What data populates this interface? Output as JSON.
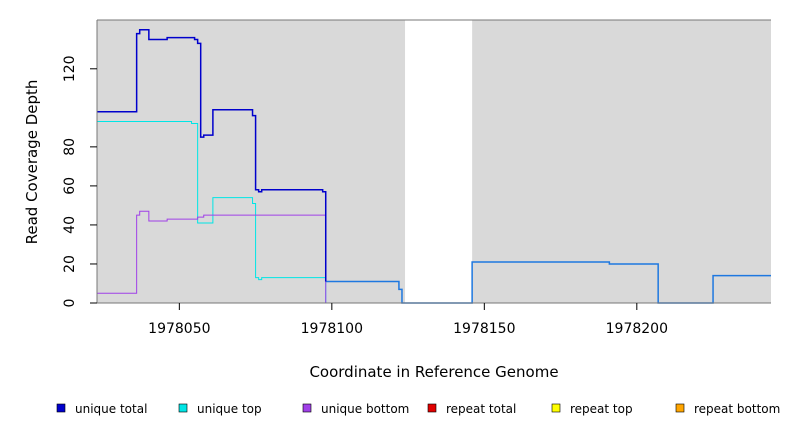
{
  "chart_data": {
    "type": "line",
    "title": "",
    "xlabel": "Coordinate in Reference Genome",
    "ylabel": "Read Coverage Depth",
    "xlim": [
      1978023,
      1978244
    ],
    "ylim": [
      0,
      145
    ],
    "xticks": [
      1978050,
      1978100,
      1978150,
      1978200
    ],
    "yticks": [
      0,
      20,
      40,
      60,
      80,
      120
    ],
    "background_color": "#d9d9d9",
    "gap_regions": [
      [
        1978124,
        1978146
      ]
    ],
    "legend_position": "bottom",
    "series": [
      {
        "name": "unique total",
        "color": "#0000cc",
        "points": [
          [
            1978023,
            98
          ],
          [
            1978036,
            98
          ],
          [
            1978036,
            138
          ],
          [
            1978037,
            138
          ],
          [
            1978037,
            140
          ],
          [
            1978040,
            140
          ],
          [
            1978040,
            135
          ],
          [
            1978046,
            135
          ],
          [
            1978046,
            136
          ],
          [
            1978055,
            136
          ],
          [
            1978055,
            135
          ],
          [
            1978056,
            135
          ],
          [
            1978056,
            133
          ],
          [
            1978057,
            133
          ],
          [
            1978057,
            85
          ],
          [
            1978058,
            85
          ],
          [
            1978058,
            86
          ],
          [
            1978061,
            86
          ],
          [
            1978061,
            99
          ],
          [
            1978074,
            99
          ],
          [
            1978074,
            96
          ],
          [
            1978075,
            96
          ],
          [
            1978075,
            58
          ],
          [
            1978076,
            58
          ],
          [
            1978076,
            57
          ],
          [
            1978077,
            57
          ],
          [
            1978077,
            58
          ],
          [
            1978097,
            58
          ],
          [
            1978097,
            57
          ],
          [
            1978098,
            57
          ],
          [
            1978098,
            11
          ]
        ]
      },
      {
        "name": "unique top",
        "color": "#00e5e5",
        "points": [
          [
            1978023,
            93
          ],
          [
            1978054,
            93
          ],
          [
            1978054,
            92
          ],
          [
            1978056,
            92
          ],
          [
            1978056,
            41
          ],
          [
            1978061,
            41
          ],
          [
            1978061,
            54
          ],
          [
            1978074,
            54
          ],
          [
            1978074,
            51
          ],
          [
            1978075,
            51
          ],
          [
            1978075,
            13
          ],
          [
            1978076,
            13
          ],
          [
            1978076,
            12
          ],
          [
            1978077,
            12
          ],
          [
            1978077,
            13
          ],
          [
            1978098,
            13
          ],
          [
            1978098,
            0
          ]
        ]
      },
      {
        "name": "unique bottom",
        "color": "#a040e8",
        "points": [
          [
            1978023,
            5
          ],
          [
            1978036,
            5
          ],
          [
            1978036,
            45
          ],
          [
            1978037,
            45
          ],
          [
            1978037,
            47
          ],
          [
            1978040,
            47
          ],
          [
            1978040,
            42
          ],
          [
            1978046,
            42
          ],
          [
            1978046,
            43
          ],
          [
            1978056,
            43
          ],
          [
            1978056,
            44
          ],
          [
            1978058,
            44
          ],
          [
            1978058,
            45
          ],
          [
            1978098,
            45
          ],
          [
            1978098,
            0
          ]
        ]
      },
      {
        "name": "repeat total",
        "color": "#e00000",
        "points": [
          [
            1978023,
            0
          ],
          [
            1978244,
            0
          ]
        ]
      },
      {
        "name": "repeat top",
        "color": "#ffff00",
        "points": [
          [
            1978023,
            0
          ],
          [
            1978098,
            0
          ]
        ]
      },
      {
        "name": "repeat bottom",
        "color": "#ffa500",
        "points": [
          [
            1978023,
            0
          ],
          [
            1978098,
            0
          ]
        ]
      },
      {
        "name": "",
        "color": "#1e78e0",
        "points": [
          [
            1978098,
            11
          ],
          [
            1978122,
            11
          ],
          [
            1978122,
            7
          ],
          [
            1978123,
            7
          ],
          [
            1978123,
            0
          ],
          [
            1978146,
            0
          ],
          [
            1978146,
            21
          ],
          [
            1978191,
            21
          ],
          [
            1978191,
            20
          ],
          [
            1978207,
            20
          ],
          [
            1978207,
            0
          ],
          [
            1978225,
            0
          ],
          [
            1978225,
            14
          ],
          [
            1978244,
            14
          ]
        ]
      }
    ]
  }
}
